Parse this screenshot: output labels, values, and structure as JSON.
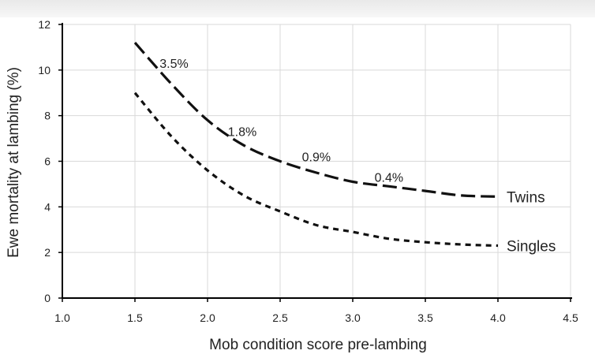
{
  "chart_data": {
    "type": "line",
    "title": "",
    "xlabel": "Mob condition score pre-lambing",
    "ylabel": "Ewe mortality at lambing (%)",
    "xlim": [
      1.0,
      4.5
    ],
    "ylim": [
      0,
      12
    ],
    "xticks": [
      "1.0",
      "1.5",
      "2.0",
      "2.5",
      "3.0",
      "3.5",
      "4.0",
      "4.5"
    ],
    "yticks": [
      "0",
      "2",
      "4",
      "6",
      "8",
      "10",
      "12"
    ],
    "grid": true,
    "legend": "none",
    "series": [
      {
        "name": "Twins",
        "style": "long-dash",
        "x": [
          1.5,
          1.75,
          2.0,
          2.25,
          2.5,
          2.75,
          3.0,
          3.25,
          3.5,
          3.75,
          4.0
        ],
        "y": [
          11.2,
          9.4,
          7.8,
          6.7,
          6.0,
          5.5,
          5.1,
          4.9,
          4.7,
          4.5,
          4.45
        ]
      },
      {
        "name": "Singles",
        "style": "short-dash",
        "x": [
          1.5,
          1.75,
          2.0,
          2.25,
          2.5,
          2.75,
          3.0,
          3.25,
          3.5,
          3.75,
          4.0
        ],
        "y": [
          9.0,
          7.1,
          5.6,
          4.5,
          3.8,
          3.2,
          2.9,
          2.6,
          2.45,
          2.35,
          2.3
        ]
      }
    ],
    "series_labels": [
      {
        "text": "Twins",
        "series": "Twins"
      },
      {
        "text": "Singles",
        "series": "Singles"
      }
    ],
    "annotations": [
      {
        "text": "3.5%",
        "x": 1.67,
        "y": 10.1
      },
      {
        "text": "1.8%",
        "x": 2.14,
        "y": 7.1
      },
      {
        "text": "0.9%",
        "x": 2.65,
        "y": 6.0
      },
      {
        "text": "0.4%",
        "x": 3.15,
        "y": 5.1
      }
    ],
    "colors": {
      "lines": "#111111",
      "grid": "#d9d9d9",
      "axis": "#000000",
      "text": "#222222"
    }
  }
}
